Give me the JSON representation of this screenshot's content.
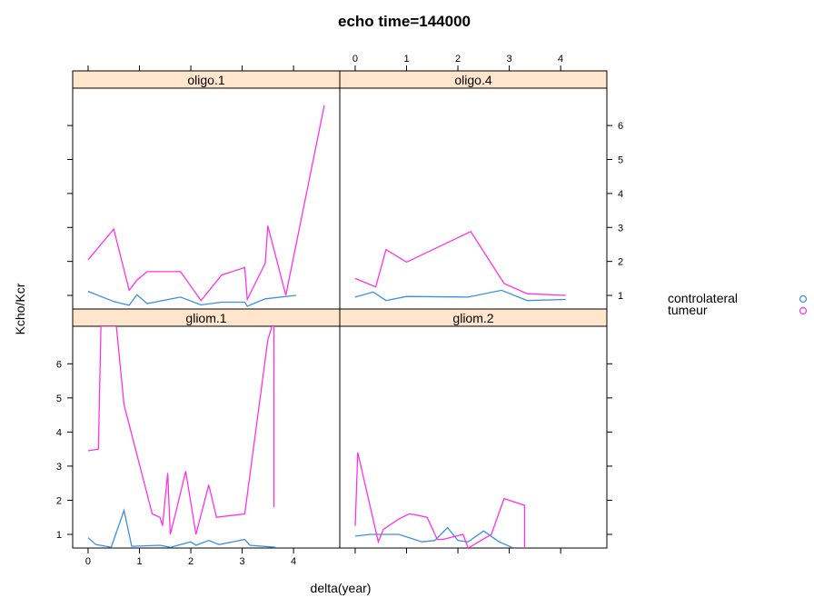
{
  "chart_data": {
    "type": "line",
    "title": "echo time=144000",
    "xlabel": "delta(year)",
    "ylabel": "Kcho/Kcr",
    "x_ticks": [
      0,
      1,
      2,
      3,
      4
    ],
    "y_ticks": [
      1,
      2,
      3,
      4,
      5,
      6
    ],
    "xlim": [
      -0.3,
      4.9
    ],
    "ylim": [
      0.6,
      7.1
    ],
    "grid": false,
    "legend_position": "right",
    "legend": [
      {
        "label": "controlateral",
        "color": "#3a8fe6"
      },
      {
        "label": "tumeur",
        "color": "#ff33e6"
      }
    ],
    "panels": [
      {
        "strip": "oligo.1",
        "series": [
          {
            "name": "controlateral",
            "x": [
              0.0,
              0.5,
              0.8,
              0.95,
              1.15,
              1.8,
              2.2,
              2.6,
              3.05,
              3.1,
              3.45,
              4.05
            ],
            "y": [
              1.12,
              0.82,
              0.71,
              1.02,
              0.76,
              0.95,
              0.72,
              0.8,
              0.8,
              0.68,
              0.9,
              1.0
            ]
          },
          {
            "name": "tumeur",
            "x": [
              0.0,
              0.5,
              0.8,
              0.95,
              1.15,
              1.8,
              2.2,
              2.6,
              3.05,
              3.1,
              3.45,
              3.5,
              3.85,
              4.6
            ],
            "y": [
              2.05,
              2.95,
              1.15,
              1.45,
              1.7,
              1.7,
              0.85,
              1.6,
              1.82,
              0.88,
              1.95,
              3.05,
              1.0,
              6.6
            ]
          }
        ]
      },
      {
        "strip": "oligo.4",
        "series": [
          {
            "name": "controlateral",
            "x": [
              0.0,
              0.35,
              0.6,
              1.0,
              2.2,
              2.85,
              3.35,
              4.1
            ],
            "y": [
              0.95,
              1.1,
              0.85,
              0.97,
              0.95,
              1.15,
              0.85,
              0.88
            ]
          },
          {
            "name": "tumeur",
            "x": [
              0.0,
              0.4,
              0.6,
              1.0,
              2.25,
              2.9,
              3.35,
              4.1
            ],
            "y": [
              1.5,
              1.25,
              2.35,
              1.98,
              2.88,
              1.35,
              1.05,
              1.0
            ]
          }
        ]
      },
      {
        "strip": "gliom.1",
        "series": [
          {
            "name": "controlateral",
            "x": [
              0.0,
              0.15,
              0.45,
              0.7,
              0.85,
              1.4,
              1.6,
              2.0,
              2.1,
              2.35,
              2.55,
              3.05,
              3.15,
              3.65
            ],
            "y": [
              0.9,
              0.7,
              0.62,
              1.7,
              0.65,
              0.68,
              0.62,
              0.78,
              0.68,
              0.82,
              0.7,
              0.85,
              0.68,
              0.62
            ]
          },
          {
            "name": "tumeur",
            "x": [
              0.0,
              0.2,
              0.25,
              0.55,
              0.7,
              1.25,
              1.4,
              1.45,
              1.55,
              1.6,
              1.7,
              1.9,
              2.1,
              2.35,
              2.5,
              3.05,
              3.5,
              3.58,
              3.62,
              3.62
            ],
            "y": [
              3.45,
              3.5,
              7.1,
              7.1,
              4.8,
              1.6,
              1.5,
              1.25,
              2.8,
              1.0,
              1.6,
              2.85,
              1.0,
              2.45,
              1.5,
              1.6,
              6.7,
              7.1,
              7.1,
              1.8
            ]
          }
        ]
      },
      {
        "strip": "gliom.2",
        "series": [
          {
            "name": "controlateral",
            "x": [
              0.0,
              0.3,
              0.55,
              0.85,
              1.3,
              1.55,
              1.8,
              2.0,
              2.2,
              2.5,
              2.8,
              3.05
            ],
            "y": [
              0.95,
              1.0,
              1.0,
              1.0,
              0.78,
              0.82,
              1.2,
              0.82,
              0.78,
              1.1,
              0.78,
              0.62
            ]
          },
          {
            "name": "tumeur",
            "x": [
              0.0,
              0.05,
              0.45,
              0.55,
              0.85,
              1.05,
              1.15,
              1.4,
              1.6,
              1.7,
              2.1,
              2.2,
              2.65,
              2.9,
              3.3,
              3.3
            ],
            "y": [
              1.25,
              3.4,
              0.78,
              1.15,
              1.45,
              1.6,
              1.58,
              1.5,
              0.85,
              0.85,
              1.0,
              0.6,
              1.0,
              2.05,
              1.85,
              0.6
            ]
          }
        ]
      }
    ]
  }
}
